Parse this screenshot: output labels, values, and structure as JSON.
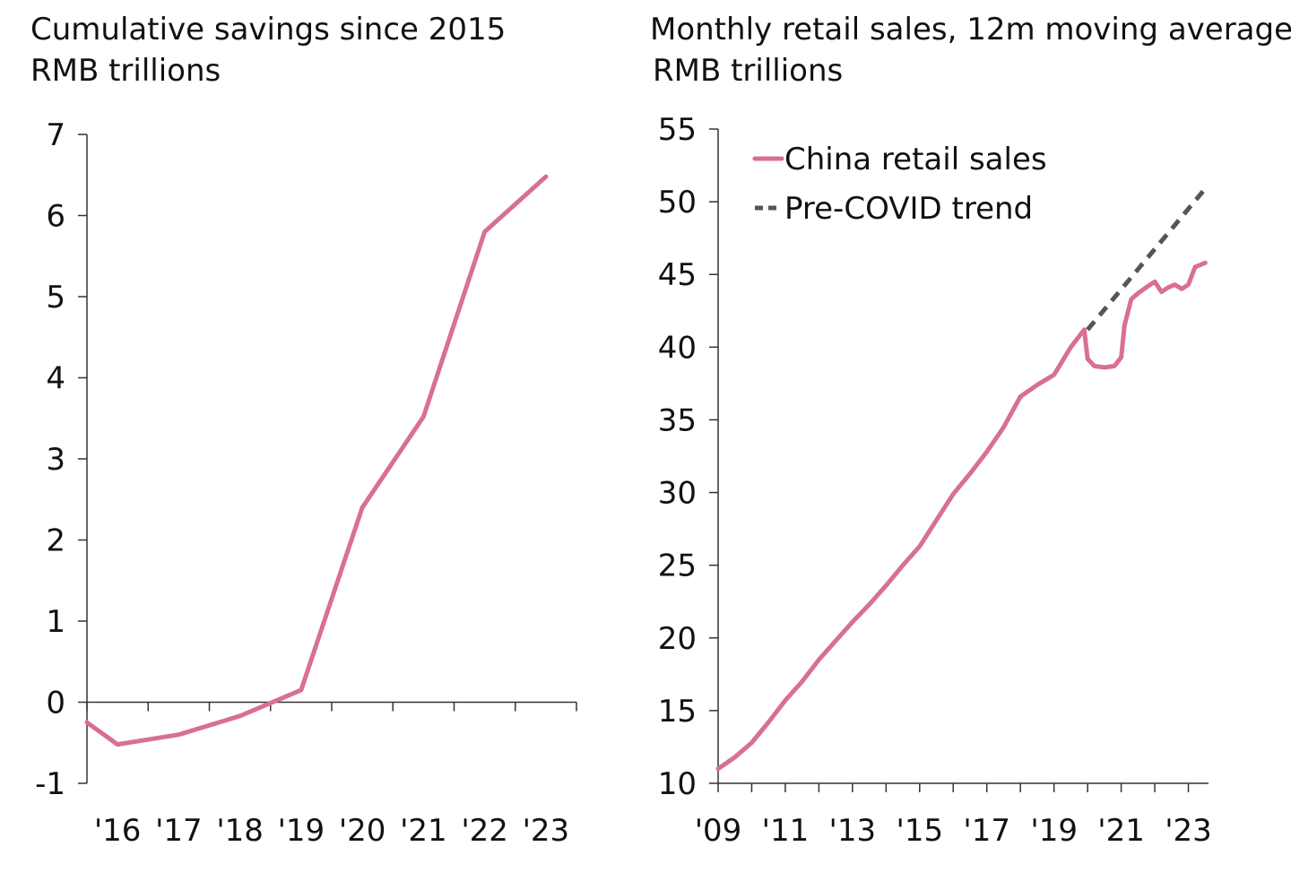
{
  "chart_data": [
    {
      "type": "line",
      "title": "Cumulative savings since 2015",
      "subtitle": "RMB trillions",
      "ylim": [
        -1,
        7
      ],
      "yticks": [
        -1,
        0,
        1,
        2,
        3,
        4,
        5,
        6,
        7
      ],
      "xlim": [
        2015.5,
        2023.5
      ],
      "xtick_labels": [
        "'16",
        "'17",
        "'18",
        "'19",
        "'20",
        "'21",
        "'22",
        "'23"
      ],
      "xtick_positions": [
        2016,
        2017,
        2018,
        2019,
        2020,
        2021,
        2022,
        2023
      ],
      "grid": false,
      "series": [
        {
          "color": "#d8708f",
          "x": [
            2015.5,
            2016.0,
            2017.0,
            2018.0,
            2019.0,
            2020.0,
            2021.0,
            2022.0,
            2023.0
          ],
          "values": [
            -0.25,
            -0.52,
            -0.4,
            -0.17,
            0.15,
            2.4,
            3.52,
            5.8,
            6.48
          ]
        }
      ]
    },
    {
      "type": "line",
      "title": "Monthly retail sales, 12m moving average",
      "subtitle": "RMB trillions",
      "ylim": [
        10,
        55
      ],
      "yticks": [
        10,
        15,
        20,
        25,
        30,
        35,
        40,
        45,
        50,
        55
      ],
      "xlim": [
        2009,
        2023.6
      ],
      "xtick_labels": [
        "'09",
        "'11",
        "'13",
        "'15",
        "'17",
        "'19",
        "'21",
        "'23"
      ],
      "xtick_positions": [
        2009,
        2011,
        2013,
        2015,
        2017,
        2019,
        2021,
        2023
      ],
      "grid": false,
      "legend_position": "top-left",
      "series": [
        {
          "name": "China retail sales",
          "color": "#d8708f",
          "style": "solid",
          "x": [
            2009.0,
            2009.5,
            2010.0,
            2010.5,
            2011.0,
            2011.5,
            2012.0,
            2012.5,
            2013.0,
            2013.5,
            2014.0,
            2014.5,
            2015.0,
            2015.5,
            2016.0,
            2016.5,
            2017.0,
            2017.5,
            2018.0,
            2018.5,
            2019.0,
            2019.5,
            2019.9,
            2020.0,
            2020.2,
            2020.5,
            2020.8,
            2021.0,
            2021.1,
            2021.3,
            2021.5,
            2021.8,
            2022.0,
            2022.2,
            2022.4,
            2022.6,
            2022.8,
            2023.0,
            2023.2,
            2023.5
          ],
          "values": [
            11.0,
            11.8,
            12.8,
            14.2,
            15.7,
            17.0,
            18.5,
            19.8,
            21.1,
            22.3,
            23.6,
            25.0,
            26.3,
            28.1,
            29.9,
            31.3,
            32.8,
            34.5,
            36.6,
            37.4,
            38.1,
            40.0,
            41.2,
            39.2,
            38.7,
            38.6,
            38.7,
            39.3,
            41.5,
            43.3,
            43.7,
            44.2,
            44.5,
            43.8,
            44.1,
            44.3,
            44.0,
            44.3,
            45.5,
            45.8
          ]
        },
        {
          "name": "Pre-COVID trend",
          "color": "#555555",
          "style": "dashed",
          "x": [
            2020.0,
            2023.5
          ],
          "values": [
            41.2,
            50.9
          ]
        }
      ]
    }
  ]
}
